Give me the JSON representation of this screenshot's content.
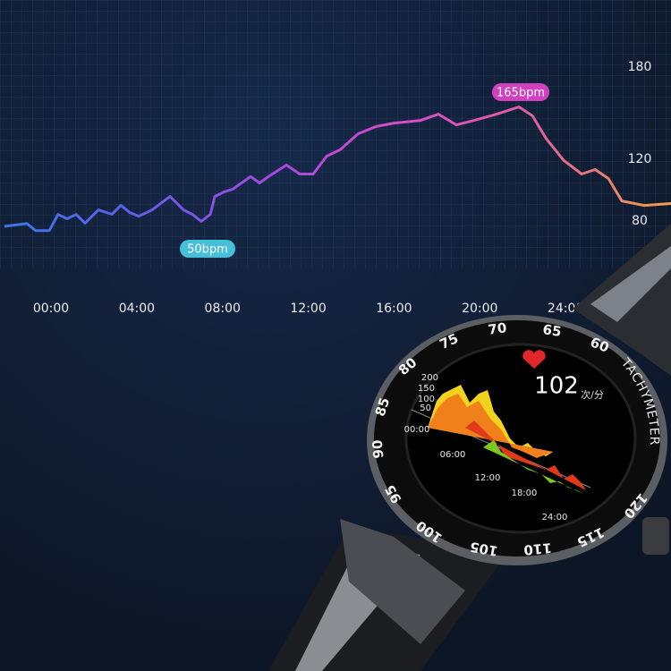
{
  "chart_data": {
    "type": "line",
    "x": [
      -2.17,
      -1.13,
      -0.71,
      -0.08,
      0.33,
      0.75,
      1.17,
      1.59,
      2.21,
      2.84,
      3.26,
      3.67,
      4.09,
      4.72,
      5.55,
      6.18,
      6.59,
      7.01,
      7.43,
      7.64,
      8.06,
      8.47,
      8.89,
      9.31,
      9.73,
      10.14,
      10.98,
      11.6,
      12.23,
      12.86,
      13.48,
      14.32,
      15.15,
      15.99,
      17.24,
      18.07,
      18.91,
      19.74,
      20.79,
      21.83,
      22.46,
      23.08,
      23.92,
      24.75,
      25.38,
      26.0,
      26.63,
      27.67,
      28.92
    ],
    "series": [
      {
        "values": [
          76.5,
          78.3,
          73.7,
          73.7,
          84.2,
          81.4,
          84.2,
          78.5,
          87.2,
          84.3,
          90.1,
          85.5,
          83.1,
          87.2,
          95.9,
          87.2,
          84.3,
          79.7,
          84.3,
          95.9,
          98.8,
          100.6,
          104.7,
          108.8,
          104.7,
          108.8,
          116.3,
          110.5,
          110.5,
          122.1,
          126.2,
          136.6,
          141.3,
          143.6,
          145.3,
          149.4,
          142.4,
          145.3,
          149.4,
          154.1,
          148.3,
          133.8,
          119.3,
          110.5,
          113.4,
          107.6,
          93.0,
          90.1,
          91.3
        ],
        "gradient": [
          "#3a78e6",
          "#5f5ee8",
          "#a548e0",
          "#d84cc8",
          "#e0609a",
          "#f0a048"
        ]
      }
    ],
    "xlim": [
      -2.38,
      28.92
    ],
    "xticks": [
      {
        "value": 0,
        "label": "00:00"
      },
      {
        "value": 4,
        "label": "04:00"
      },
      {
        "value": 8,
        "label": "08:00"
      },
      {
        "value": 12,
        "label": "12:00"
      },
      {
        "value": 16,
        "label": "16:00"
      },
      {
        "value": 20,
        "label": "20:00"
      },
      {
        "value": 24,
        "label": "24:00"
      }
    ],
    "ylim": [
      31.7,
      223.6
    ],
    "yticks": [
      180,
      120,
      80
    ],
    "annotations": [
      {
        "text": "165bpm",
        "color": "#d040c0"
      },
      {
        "text": "50bpm",
        "color": "#46c0d8"
      }
    ]
  },
  "watch": {
    "bpm": "102",
    "unit": "次/分",
    "bezel_label": "TACHYMETER",
    "bezel_numbers": [
      "75",
      "70",
      "65",
      "60",
      "80",
      "85",
      "90",
      "95",
      "100",
      "105",
      "110",
      "115",
      "120"
    ],
    "mini_chart": {
      "yticks": [
        "200",
        "150",
        "100",
        "50"
      ],
      "xticks": [
        "00:00",
        "06:00",
        "12:00",
        "18:00",
        "24:00"
      ]
    }
  }
}
